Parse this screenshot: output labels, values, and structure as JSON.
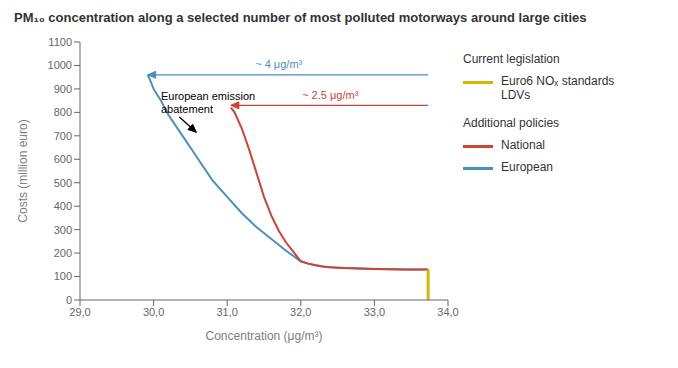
{
  "chart_data": {
    "type": "line",
    "title": "PM₁₀ concentration along a selected number of most polluted motorways around large cities",
    "x_label": "Concentration (μg/m³)",
    "y_label": "Costs (million euro)",
    "xlim": [
      29.0,
      34.0
    ],
    "ylim": [
      0,
      1100
    ],
    "xticks": [
      {
        "value": 29.0,
        "label": "29,0"
      },
      {
        "value": 30.0,
        "label": "30,0"
      },
      {
        "value": 31.0,
        "label": "31,0"
      },
      {
        "value": 32.0,
        "label": "32,0"
      },
      {
        "value": 33.0,
        "label": "33,0"
      },
      {
        "value": 34.0,
        "label": "34,0"
      }
    ],
    "yticks": [
      0,
      100,
      200,
      300,
      400,
      500,
      600,
      700,
      800,
      900,
      1000,
      1100
    ],
    "grid": false,
    "legend": "right",
    "series": [
      {
        "name": "European",
        "color": "#4a8fc0",
        "x": [
          29.92,
          29.95,
          30.0,
          30.1,
          30.2,
          30.35,
          30.5,
          30.65,
          30.8,
          31.0,
          31.2,
          31.4,
          31.6,
          31.8,
          32.0,
          32.1,
          32.2,
          32.3,
          32.4,
          32.5,
          32.6,
          32.7,
          32.8,
          32.9,
          33.0,
          33.1,
          33.2,
          33.3,
          33.4,
          33.5,
          33.6,
          33.7,
          33.73
        ],
        "values": [
          960,
          940,
          900,
          850,
          790,
          720,
          650,
          580,
          510,
          440,
          370,
          310,
          260,
          210,
          165,
          155,
          148,
          143,
          140,
          138,
          136,
          135,
          134,
          133,
          132,
          132,
          131,
          131,
          130,
          130,
          130,
          130,
          130
        ]
      },
      {
        "name": "National",
        "color": "#cc4433",
        "x": [
          31.05,
          31.1,
          31.2,
          31.3,
          31.4,
          31.5,
          31.6,
          31.7,
          31.8,
          31.9,
          32.0,
          32.1,
          32.2,
          32.3,
          32.4,
          32.5,
          32.6,
          32.7,
          32.8,
          32.9,
          33.0,
          33.2,
          33.4,
          33.6,
          33.73
        ],
        "values": [
          820,
          800,
          730,
          640,
          540,
          440,
          360,
          295,
          245,
          205,
          165,
          155,
          148,
          143,
          140,
          138,
          136,
          135,
          134,
          133,
          132,
          131,
          130,
          130,
          130
        ]
      },
      {
        "name": "Euro6 NOₓ standards\nLDVs",
        "color": "#d4b800",
        "x": [
          33.73,
          33.73
        ],
        "values": [
          0,
          130
        ]
      }
    ],
    "legend_groups": [
      {
        "title": "Current legislation",
        "series": [
          "Euro6 NOₓ standards\nLDVs"
        ]
      },
      {
        "title": "Additional policies",
        "series": [
          "National",
          "European"
        ]
      }
    ],
    "arrows": [
      {
        "from": [
          33.73,
          960
        ],
        "to": [
          29.92,
          960
        ],
        "color": "#4a8fc0"
      },
      {
        "from": [
          33.73,
          830
        ],
        "to": [
          31.05,
          830
        ],
        "color": "#cc4433"
      },
      {
        "from": [
          30.35,
          780
        ],
        "to": [
          30.58,
          715
        ],
        "color": "#000000"
      }
    ],
    "annotations": [
      {
        "text": "~ 4 μg/m³",
        "x": 31.7,
        "y": 975,
        "color": "#4a8fc0"
      },
      {
        "text": "~ 2.5 μg/m³",
        "x": 32.4,
        "y": 845,
        "color": "#cc4433"
      },
      {
        "text": "European emission\nabatement",
        "x": 30.1,
        "y": 895,
        "color": "#000000"
      }
    ]
  }
}
